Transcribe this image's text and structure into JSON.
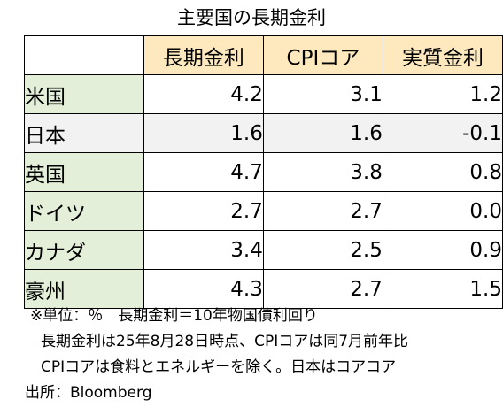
{
  "chart_data": {
    "type": "table",
    "title": "主要国の長期金利",
    "columns": [
      "長期金利",
      "CPIコア",
      "実質金利"
    ],
    "rows": [
      {
        "label": "米国",
        "values": [
          "4.2",
          "3.1",
          "1.2"
        ]
      },
      {
        "label": "日本",
        "values": [
          "1.6",
          "1.6",
          "-0.1"
        ]
      },
      {
        "label": "英国",
        "values": [
          "4.7",
          "3.8",
          "0.8"
        ]
      },
      {
        "label": "ドイツ",
        "values": [
          "2.7",
          "2.7",
          "0.0"
        ]
      },
      {
        "label": "カナダ",
        "values": [
          "3.4",
          "2.5",
          "0.9"
        ]
      },
      {
        "label": "豪州",
        "values": [
          "4.3",
          "2.7",
          "1.5"
        ]
      }
    ]
  },
  "notes": [
    "※単位：％　長期金利＝10年物国債利回り",
    "長期金利は25年8月28日時点、CPIコアは同7月前年比",
    "CPIコアは食料とエネルギーを除く。日本はコアコア",
    "出所：Bloomberg"
  ],
  "colors": {
    "header_bg": "#fde9bd",
    "row_label_bg": "#e3efd9",
    "alt_row_bg": "#f2f2f2"
  }
}
